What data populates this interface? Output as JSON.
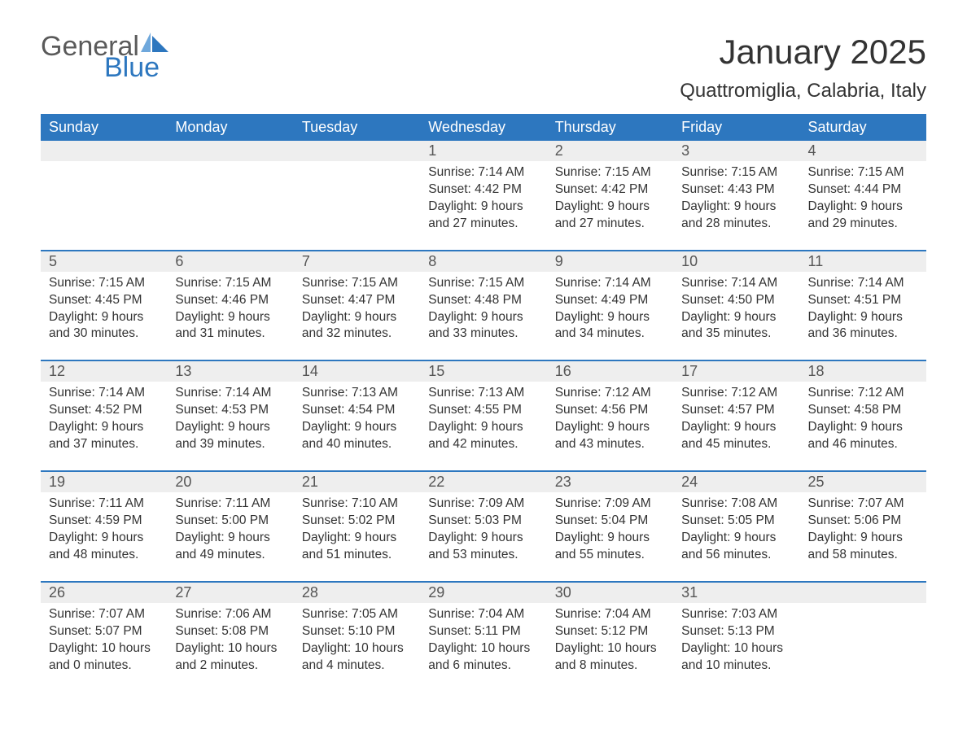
{
  "logo": {
    "general": "General",
    "blue": "Blue",
    "sail_color": "#2d77bf"
  },
  "title": "January 2025",
  "location": "Quattromiglia, Calabria, Italy",
  "colors": {
    "header_bg": "#2d77bf",
    "header_text": "#ffffff",
    "daynum_bg": "#eeeeee",
    "daynum_text": "#555555",
    "body_text": "#333333",
    "rule": "#2d77bf"
  },
  "day_headers": [
    "Sunday",
    "Monday",
    "Tuesday",
    "Wednesday",
    "Thursday",
    "Friday",
    "Saturday"
  ],
  "weeks": [
    [
      null,
      null,
      null,
      {
        "n": "1",
        "sr": "7:14 AM",
        "ss": "4:42 PM",
        "dl": "9 hours and 27 minutes."
      },
      {
        "n": "2",
        "sr": "7:15 AM",
        "ss": "4:42 PM",
        "dl": "9 hours and 27 minutes."
      },
      {
        "n": "3",
        "sr": "7:15 AM",
        "ss": "4:43 PM",
        "dl": "9 hours and 28 minutes."
      },
      {
        "n": "4",
        "sr": "7:15 AM",
        "ss": "4:44 PM",
        "dl": "9 hours and 29 minutes."
      }
    ],
    [
      {
        "n": "5",
        "sr": "7:15 AM",
        "ss": "4:45 PM",
        "dl": "9 hours and 30 minutes."
      },
      {
        "n": "6",
        "sr": "7:15 AM",
        "ss": "4:46 PM",
        "dl": "9 hours and 31 minutes."
      },
      {
        "n": "7",
        "sr": "7:15 AM",
        "ss": "4:47 PM",
        "dl": "9 hours and 32 minutes."
      },
      {
        "n": "8",
        "sr": "7:15 AM",
        "ss": "4:48 PM",
        "dl": "9 hours and 33 minutes."
      },
      {
        "n": "9",
        "sr": "7:14 AM",
        "ss": "4:49 PM",
        "dl": "9 hours and 34 minutes."
      },
      {
        "n": "10",
        "sr": "7:14 AM",
        "ss": "4:50 PM",
        "dl": "9 hours and 35 minutes."
      },
      {
        "n": "11",
        "sr": "7:14 AM",
        "ss": "4:51 PM",
        "dl": "9 hours and 36 minutes."
      }
    ],
    [
      {
        "n": "12",
        "sr": "7:14 AM",
        "ss": "4:52 PM",
        "dl": "9 hours and 37 minutes."
      },
      {
        "n": "13",
        "sr": "7:14 AM",
        "ss": "4:53 PM",
        "dl": "9 hours and 39 minutes."
      },
      {
        "n": "14",
        "sr": "7:13 AM",
        "ss": "4:54 PM",
        "dl": "9 hours and 40 minutes."
      },
      {
        "n": "15",
        "sr": "7:13 AM",
        "ss": "4:55 PM",
        "dl": "9 hours and 42 minutes."
      },
      {
        "n": "16",
        "sr": "7:12 AM",
        "ss": "4:56 PM",
        "dl": "9 hours and 43 minutes."
      },
      {
        "n": "17",
        "sr": "7:12 AM",
        "ss": "4:57 PM",
        "dl": "9 hours and 45 minutes."
      },
      {
        "n": "18",
        "sr": "7:12 AM",
        "ss": "4:58 PM",
        "dl": "9 hours and 46 minutes."
      }
    ],
    [
      {
        "n": "19",
        "sr": "7:11 AM",
        "ss": "4:59 PM",
        "dl": "9 hours and 48 minutes."
      },
      {
        "n": "20",
        "sr": "7:11 AM",
        "ss": "5:00 PM",
        "dl": "9 hours and 49 minutes."
      },
      {
        "n": "21",
        "sr": "7:10 AM",
        "ss": "5:02 PM",
        "dl": "9 hours and 51 minutes."
      },
      {
        "n": "22",
        "sr": "7:09 AM",
        "ss": "5:03 PM",
        "dl": "9 hours and 53 minutes."
      },
      {
        "n": "23",
        "sr": "7:09 AM",
        "ss": "5:04 PM",
        "dl": "9 hours and 55 minutes."
      },
      {
        "n": "24",
        "sr": "7:08 AM",
        "ss": "5:05 PM",
        "dl": "9 hours and 56 minutes."
      },
      {
        "n": "25",
        "sr": "7:07 AM",
        "ss": "5:06 PM",
        "dl": "9 hours and 58 minutes."
      }
    ],
    [
      {
        "n": "26",
        "sr": "7:07 AM",
        "ss": "5:07 PM",
        "dl": "10 hours and 0 minutes."
      },
      {
        "n": "27",
        "sr": "7:06 AM",
        "ss": "5:08 PM",
        "dl": "10 hours and 2 minutes."
      },
      {
        "n": "28",
        "sr": "7:05 AM",
        "ss": "5:10 PM",
        "dl": "10 hours and 4 minutes."
      },
      {
        "n": "29",
        "sr": "7:04 AM",
        "ss": "5:11 PM",
        "dl": "10 hours and 6 minutes."
      },
      {
        "n": "30",
        "sr": "7:04 AM",
        "ss": "5:12 PM",
        "dl": "10 hours and 8 minutes."
      },
      {
        "n": "31",
        "sr": "7:03 AM",
        "ss": "5:13 PM",
        "dl": "10 hours and 10 minutes."
      },
      null
    ]
  ],
  "labels": {
    "sunrise": "Sunrise: ",
    "sunset": "Sunset: ",
    "daylight": "Daylight: "
  }
}
